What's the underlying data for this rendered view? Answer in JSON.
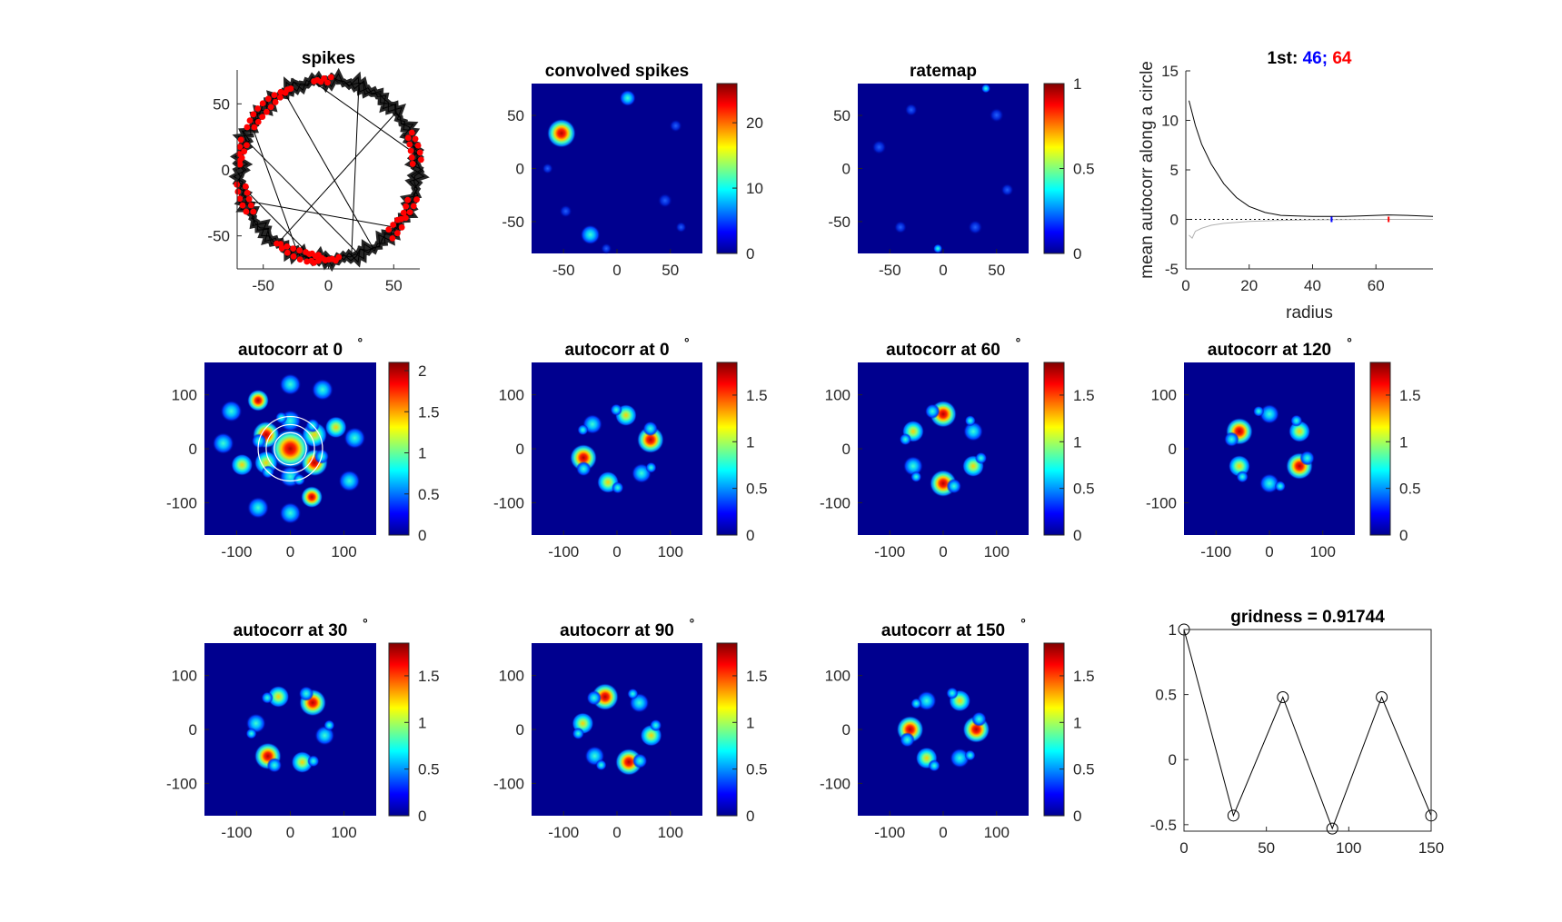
{
  "figure": {
    "background": "#ffffff",
    "heatmap_background": "#00008f"
  },
  "panels": {
    "spikes": {
      "title": "spikes",
      "xticks": [
        -50,
        0,
        50
      ],
      "yticks": [
        -50,
        0,
        50
      ],
      "xlim": [
        -70,
        70
      ],
      "ylim": [
        -75,
        75
      ],
      "path_color": "#000000",
      "spike_color": "#ff0000"
    },
    "convolved": {
      "title": "convolved spikes",
      "xticks": [
        -50,
        0,
        50
      ],
      "yticks": [
        -50,
        0,
        50
      ],
      "xlim": [
        -80,
        80
      ],
      "ylim": [
        -80,
        80
      ],
      "cticks": [
        0,
        10,
        20
      ],
      "clim": [
        0,
        26
      ]
    },
    "ratemap": {
      "title": "ratemap",
      "xticks": [
        -50,
        0,
        50
      ],
      "yticks": [
        -50,
        0,
        50
      ],
      "xlim": [
        -80,
        80
      ],
      "ylim": [
        -80,
        80
      ],
      "cticks": [
        0,
        0.5,
        1
      ],
      "clim": [
        0,
        1
      ]
    },
    "radial": {
      "title_prefix": "1st:",
      "first": "46;",
      "second": "64",
      "first_color": "#0000ff",
      "second_color": "#ff0000",
      "xlabel": "radius",
      "ylabel": "mean autocorr along a circle",
      "xticks": [
        0,
        20,
        40,
        60
      ],
      "yticks": [
        -5,
        0,
        5,
        10,
        15
      ],
      "xlim": [
        0,
        78
      ],
      "ylim": [
        -5,
        15
      ]
    },
    "ac0_main": {
      "title": "autocorr at 0",
      "deg": "°",
      "xticks": [
        -100,
        0,
        100
      ],
      "yticks": [
        -100,
        0,
        100
      ],
      "xlim": [
        -160,
        160
      ],
      "ylim": [
        -160,
        160
      ],
      "cticks": [
        "0",
        "0.5",
        "1",
        "1.5",
        "2"
      ],
      "clim": [
        0,
        2.1
      ]
    },
    "ac0": {
      "title": "autocorr at 0",
      "deg": "°",
      "xticks": [
        -100,
        0,
        100
      ],
      "yticks": [
        -100,
        0,
        100
      ],
      "xlim": [
        -160,
        160
      ],
      "ylim": [
        -160,
        160
      ],
      "cticks": [
        "0",
        "0.5",
        "1",
        "1.5"
      ],
      "clim": [
        0,
        1.85
      ]
    },
    "ac60": {
      "title": "autocorr at 60",
      "deg": "°",
      "xticks": [
        -100,
        0,
        100
      ],
      "yticks": [
        -100,
        0,
        100
      ],
      "xlim": [
        -160,
        160
      ],
      "ylim": [
        -160,
        160
      ],
      "cticks": [
        "0",
        "0.5",
        "1",
        "1.5"
      ],
      "clim": [
        0,
        1.85
      ]
    },
    "ac120": {
      "title": "autocorr at 120",
      "deg": "°",
      "xticks": [
        -100,
        0,
        100
      ],
      "yticks": [
        -100,
        0,
        100
      ],
      "xlim": [
        -160,
        160
      ],
      "ylim": [
        -160,
        160
      ],
      "cticks": [
        "0",
        "0.5",
        "1",
        "1.5"
      ],
      "clim": [
        0,
        1.85
      ]
    },
    "ac30": {
      "title": "autocorr at 30",
      "deg": "°",
      "xticks": [
        -100,
        0,
        100
      ],
      "yticks": [
        -100,
        0,
        100
      ],
      "xlim": [
        -160,
        160
      ],
      "ylim": [
        -160,
        160
      ],
      "cticks": [
        "0",
        "0.5",
        "1",
        "1.5"
      ],
      "clim": [
        0,
        1.85
      ]
    },
    "ac90": {
      "title": "autocorr at 90",
      "deg": "°",
      "xticks": [
        -100,
        0,
        100
      ],
      "yticks": [
        -100,
        0,
        100
      ],
      "xlim": [
        -160,
        160
      ],
      "ylim": [
        -160,
        160
      ],
      "cticks": [
        "0",
        "0.5",
        "1",
        "1.5"
      ],
      "clim": [
        0,
        1.85
      ]
    },
    "ac150": {
      "title": "autocorr at 150",
      "deg": "°",
      "xticks": [
        -100,
        0,
        100
      ],
      "yticks": [
        -100,
        0,
        100
      ],
      "xlim": [
        -160,
        160
      ],
      "ylim": [
        -160,
        160
      ],
      "cticks": [
        "0",
        "0.5",
        "1",
        "1.5"
      ],
      "clim": [
        0,
        1.85
      ]
    },
    "gridness": {
      "title": "gridness = 0.91744",
      "xticks": [
        0,
        50,
        100,
        150
      ],
      "yticks": [
        "-0.5",
        "0",
        "0.5",
        "1"
      ],
      "xlim": [
        0,
        150
      ],
      "ylim": [
        -0.55,
        1.0
      ]
    }
  },
  "chart_data": [
    {
      "type": "scatter",
      "title": "spikes",
      "xlim": [
        -70,
        70
      ],
      "ylim": [
        -75,
        75
      ],
      "path": "circular trajectory of radius ~68",
      "spike_clusters": [
        {
          "angle_deg": 135
        },
        {
          "angle_deg": 200
        },
        {
          "angle_deg": 250
        },
        {
          "angle_deg": 270
        },
        {
          "angle_deg": 15
        },
        {
          "angle_deg": 335
        },
        {
          "angle_deg": 95
        }
      ]
    },
    {
      "type": "heatmap",
      "title": "convolved spikes",
      "clim": [
        0,
        26
      ],
      "peaks": [
        {
          "x": -52,
          "y": 33,
          "value": 26
        },
        {
          "x": 10,
          "y": 66,
          "value": 5
        },
        {
          "x": -25,
          "y": -62,
          "value": 5
        },
        {
          "x": 45,
          "y": -30,
          "value": 2
        }
      ]
    },
    {
      "type": "heatmap",
      "title": "ratemap",
      "clim": [
        0,
        1
      ],
      "peaks": [
        {
          "x": 40,
          "y": 75,
          "value": 0.3
        },
        {
          "x": 30,
          "y": -55,
          "value": 0.2
        },
        {
          "x": -5,
          "y": -75,
          "value": 0.2
        }
      ]
    },
    {
      "type": "line",
      "title": "1st: 46; 64",
      "xlabel": "radius",
      "ylabel": "mean autocorr along a circle",
      "xlim": [
        0,
        78
      ],
      "ylim": [
        -5,
        15
      ],
      "series": [
        {
          "x": [
            1,
            3,
            5,
            8,
            12,
            16,
            20,
            25,
            30,
            35,
            40,
            46,
            50,
            55,
            60,
            64,
            70,
            78
          ],
          "values": [
            12,
            9.5,
            7.6,
            5.6,
            3.6,
            2.2,
            1.3,
            0.7,
            0.4,
            0.35,
            0.3,
            0.3,
            0.3,
            0.35,
            0.4,
            0.45,
            0.4,
            0.3
          ]
        },
        {
          "x": [
            1,
            2,
            3,
            5,
            8,
            12,
            20,
            30,
            40,
            60,
            78
          ],
          "values": [
            -1.6,
            -1.9,
            -1.2,
            -0.9,
            -0.6,
            -0.4,
            -0.2,
            -0.1,
            -0.05,
            0,
            0
          ]
        }
      ],
      "markers": [
        46,
        64
      ]
    },
    {
      "type": "heatmap",
      "title": "autocorr at 0°",
      "clim": [
        0,
        2.1
      ],
      "rings_radius": [
        30,
        45,
        60
      ],
      "center_peak": 2.1
    },
    {
      "type": "heatmap",
      "title": "autocorr at 0°",
      "clim": [
        0,
        1.85
      ],
      "peak_angles_deg": [
        0,
        60,
        120,
        180,
        240,
        300
      ]
    },
    {
      "type": "heatmap",
      "title": "autocorr at 60°",
      "clim": [
        0,
        1.85
      ]
    },
    {
      "type": "heatmap",
      "title": "autocorr at 120°",
      "clim": [
        0,
        1.85
      ]
    },
    {
      "type": "heatmap",
      "title": "autocorr at 30°",
      "clim": [
        0,
        1.85
      ]
    },
    {
      "type": "heatmap",
      "title": "autocorr at 90°",
      "clim": [
        0,
        1.85
      ]
    },
    {
      "type": "heatmap",
      "title": "autocorr at 150°",
      "clim": [
        0,
        1.85
      ]
    },
    {
      "type": "line",
      "title": "gridness = 0.91744",
      "x": [
        0,
        30,
        60,
        90,
        120,
        150
      ],
      "values": [
        1.0,
        -0.43,
        0.48,
        -0.53,
        0.48,
        -0.43
      ],
      "xlim": [
        0,
        150
      ],
      "ylim": [
        -0.55,
        1.0
      ]
    }
  ]
}
